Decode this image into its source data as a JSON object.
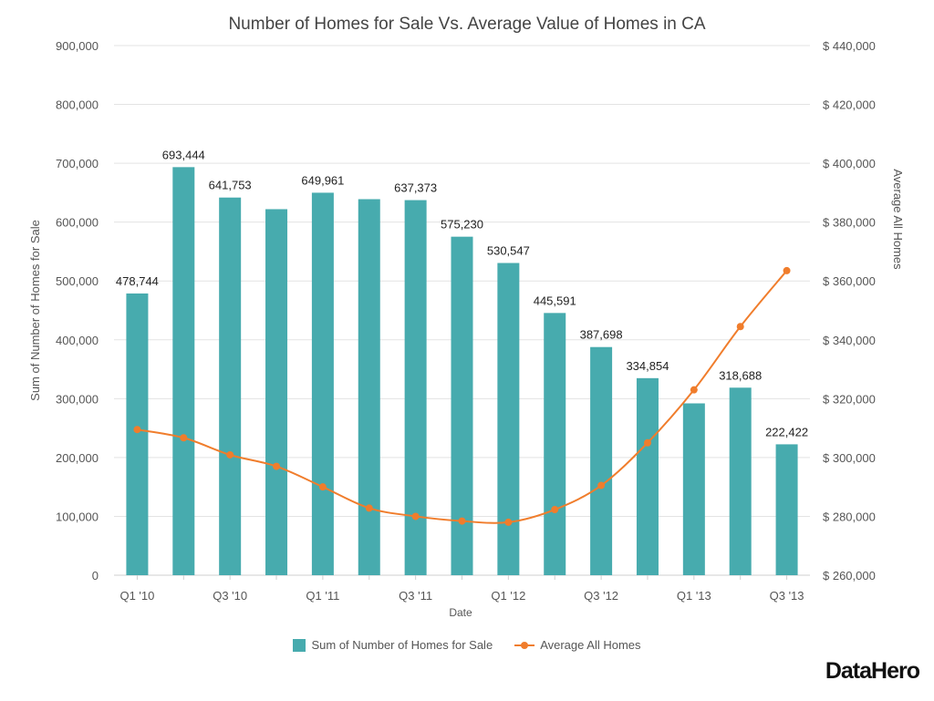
{
  "chart_data": {
    "type": "bar+line",
    "title": "Number of Homes for Sale Vs. Average Value of Homes in CA",
    "xlabel": "Date",
    "ylabel_left": "Sum of Number of Homes for Sale",
    "ylabel_right": "Average All Homes",
    "x_tick_labels": [
      "Q1 '10",
      "",
      "Q3 '10",
      "",
      "Q1 '11",
      "",
      "Q3 '11",
      "",
      "Q1 '12",
      "",
      "Q3 '12",
      "",
      "Q1 '13",
      "",
      "Q3 '13"
    ],
    "y_left": {
      "min": 0,
      "max": 900000,
      "ticks": [
        "0",
        "100,000",
        "200,000",
        "300,000",
        "400,000",
        "500,000",
        "600,000",
        "700,000",
        "800,000",
        "900,000"
      ]
    },
    "y_right": {
      "min": 260000,
      "max": 440000,
      "ticks": [
        "$ 260,000",
        "$ 280,000",
        "$ 300,000",
        "$ 320,000",
        "$ 340,000",
        "$ 360,000",
        "$ 380,000",
        "$ 400,000",
        "$ 420,000",
        "$ 440,000"
      ]
    },
    "grid": true,
    "legend_position": "bottom",
    "series": [
      {
        "name": "Sum of Number of Homes for Sale",
        "type": "bar",
        "axis": "left",
        "color": "#47ABAE",
        "values": [
          478744,
          693444,
          641753,
          622000,
          649961,
          639000,
          637373,
          575230,
          530547,
          445591,
          387698,
          334854,
          292000,
          318688,
          222422
        ],
        "data_labels": [
          "478,744",
          "693,444",
          "641,753",
          "",
          "649,961",
          "",
          "637,373",
          "575,230",
          "530,547",
          "445,591",
          "387,698",
          "334,854",
          "",
          "318,688",
          "222,422"
        ]
      },
      {
        "name": "Average All Homes",
        "type": "line",
        "axis": "right",
        "color": "#F07D2C",
        "values": [
          309500,
          306700,
          300900,
          297000,
          290000,
          282800,
          280000,
          278400,
          278000,
          282300,
          290500,
          305000,
          323000,
          344500,
          363500
        ]
      }
    ]
  },
  "brand": "DataHero"
}
